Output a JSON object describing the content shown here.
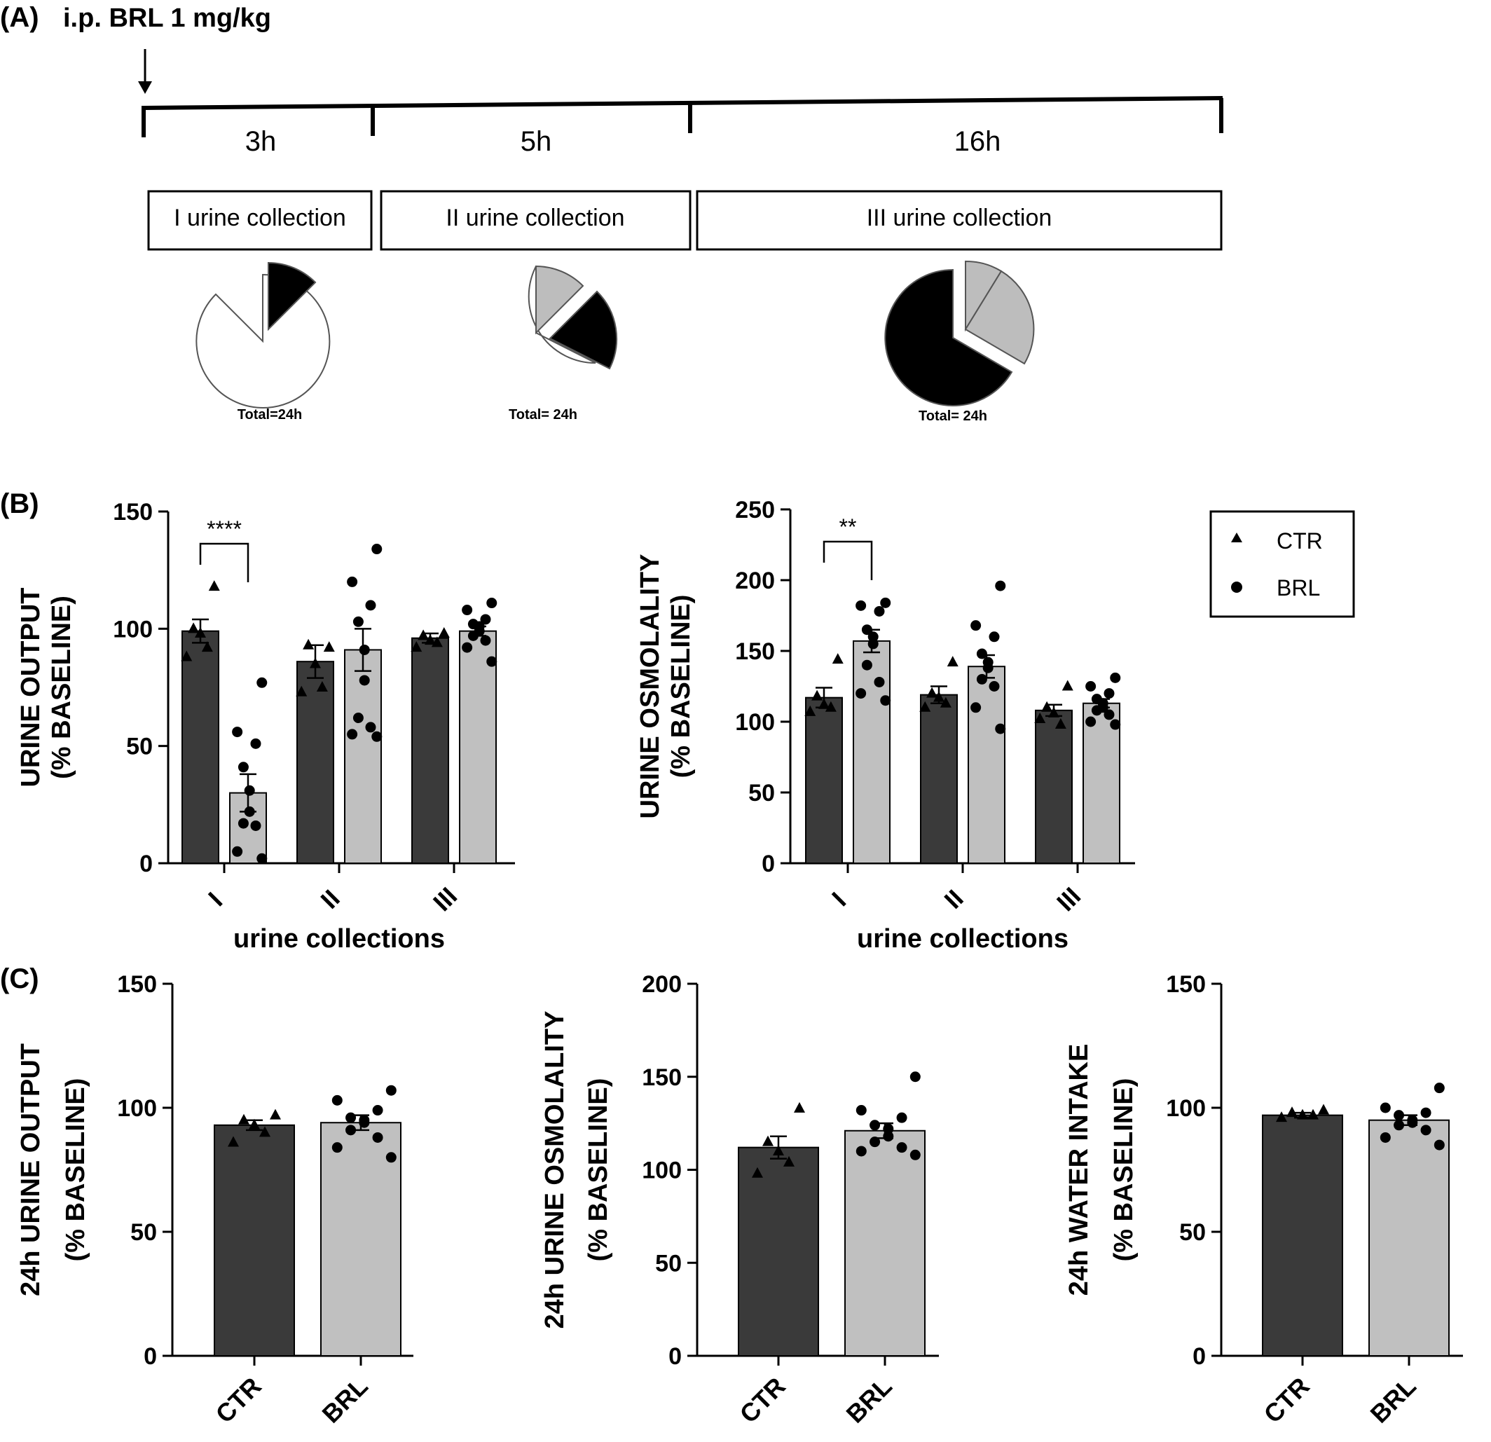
{
  "panel_labels": {
    "A": "(A)",
    "B": "(B)",
    "C": "(C)"
  },
  "timeline": {
    "injection_label": "i.p. BRL 1 mg/kg",
    "durations": [
      "3h",
      "5h",
      "16h"
    ],
    "collections": [
      "I urine collection",
      "II urine collection",
      "III urine collection"
    ],
    "pie_caption": [
      "Total=24h",
      "Total= 24h",
      "Total= 24h"
    ],
    "pies": [
      {
        "fractions": {
          "white": 0.875,
          "black": 0.125
        }
      },
      {
        "fractions": {
          "white": 0.667,
          "gray": 0.125,
          "black": 0.208
        }
      },
      {
        "fractions": {
          "black": 0.667,
          "gray": 0.333
        }
      }
    ]
  },
  "legend": {
    "items": [
      {
        "label": "CTR",
        "marker": "triangle"
      },
      {
        "label": "BRL",
        "marker": "circle"
      }
    ]
  },
  "colors": {
    "ctr_bar": "#3a3a3a",
    "brl_bar": "#c0c0c0",
    "marker": "#000000",
    "axis": "#000000"
  },
  "chart_data": [
    {
      "id": "b_left",
      "type": "bar",
      "ylabel": [
        "URINE OUTPUT",
        "(% BASELINE)"
      ],
      "xlabel": "urine collections",
      "categories": [
        "I",
        "II",
        "III"
      ],
      "ylim": [
        0,
        150
      ],
      "yticks": [
        0,
        50,
        100,
        150
      ],
      "series": [
        {
          "name": "CTR",
          "values": [
            99,
            86,
            96
          ],
          "sem": [
            5,
            7,
            2
          ],
          "points": [
            [
              118,
              100,
              98,
              92,
              88
            ],
            [
              92,
              93,
              85,
              75,
              73
            ],
            [
              98,
              97,
              95,
              94,
              92
            ]
          ]
        },
        {
          "name": "BRL",
          "values": [
            30,
            91,
            99
          ],
          "sem": [
            8,
            9,
            2
          ],
          "points": [
            [
              77,
              56,
              51,
              41,
              31,
              22,
              17,
              16,
              5,
              2
            ],
            [
              134,
              120,
              110,
              103,
              91,
              78,
              62,
              58,
              55,
              54
            ],
            [
              111,
              108,
              104,
              102,
              101,
              99,
              97,
              95,
              92,
              86
            ]
          ]
        }
      ],
      "significance": {
        "category": "I",
        "label": "****"
      }
    },
    {
      "id": "b_right",
      "type": "bar",
      "ylabel": [
        "URINE OSMOLALITY",
        "(% BASELINE)"
      ],
      "xlabel": "urine collections",
      "categories": [
        "I",
        "II",
        "III"
      ],
      "ylim": [
        0,
        250
      ],
      "yticks": [
        0,
        50,
        100,
        150,
        200,
        250
      ],
      "series": [
        {
          "name": "CTR",
          "values": [
            117,
            119,
            108
          ],
          "sem": [
            7,
            6,
            4
          ],
          "points": [
            [
              144,
              118,
              112,
              110,
              107
            ],
            [
              142,
              120,
              117,
              113,
              110
            ],
            [
              125,
              110,
              106,
              98,
              102
            ]
          ]
        },
        {
          "name": "BRL",
          "values": [
            157,
            139,
            113
          ],
          "sem": [
            8,
            8,
            3
          ],
          "points": [
            [
              184,
              182,
              178,
              165,
              160,
              155,
              140,
              128,
              120,
              115
            ],
            [
              196,
              168,
              160,
              148,
              142,
              138,
              130,
              125,
              110,
              95
            ],
            [
              131,
              125,
              120,
              116,
              113,
              110,
              108,
              105,
              100,
              98
            ]
          ]
        }
      ],
      "significance": {
        "category": "I",
        "label": "**"
      }
    },
    {
      "id": "c1",
      "type": "bar",
      "ylabel": [
        "24h URINE OUTPUT",
        "(% BASELINE)"
      ],
      "categories": [
        "CTR",
        "BRL"
      ],
      "ylim": [
        0,
        150
      ],
      "yticks": [
        0,
        50,
        100,
        150
      ],
      "values": [
        93,
        94
      ],
      "sem": [
        2,
        3
      ],
      "points": [
        [
          97,
          95,
          93,
          90,
          86
        ],
        [
          107,
          103,
          99,
          96,
          95,
          94,
          91,
          88,
          84,
          80
        ]
      ]
    },
    {
      "id": "c2",
      "type": "bar",
      "ylabel": [
        "24h URINE OSMOLALITY",
        "(% BASELINE)"
      ],
      "categories": [
        "CTR",
        "BRL"
      ],
      "ylim": [
        0,
        200
      ],
      "yticks": [
        0,
        50,
        100,
        150,
        200
      ],
      "values": [
        112,
        121
      ],
      "sem": [
        6,
        4
      ],
      "points": [
        [
          133,
          115,
          110,
          104,
          98
        ],
        [
          150,
          132,
          128,
          124,
          122,
          118,
          115,
          112,
          110,
          108
        ]
      ]
    },
    {
      "id": "c3",
      "type": "bar",
      "ylabel": [
        "24h WATER INTAKE",
        "(% BASELINE)"
      ],
      "categories": [
        "CTR",
        "BRL"
      ],
      "ylim": [
        0,
        150
      ],
      "yticks": [
        0,
        50,
        100,
        150
      ],
      "values": [
        97,
        95
      ],
      "sem": [
        1,
        2
      ],
      "points": [
        [
          99,
          98,
          97,
          97,
          96
        ],
        [
          108,
          100,
          98,
          97,
          95,
          94,
          93,
          91,
          88,
          85
        ]
      ]
    }
  ]
}
